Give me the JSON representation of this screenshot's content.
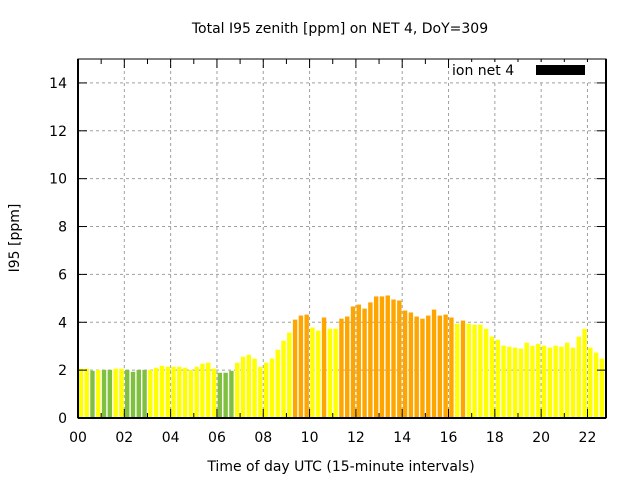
{
  "chart_data": {
    "type": "bar",
    "title": "Total I95 zenith [ppm] on NET 4, DoY=309",
    "xlabel": "Time of day UTC (15-minute intervals)",
    "ylabel": "I95 [ppm]",
    "xlim": [
      0,
      22.8
    ],
    "ylim": [
      0,
      15
    ],
    "grid": true,
    "legend": {
      "label": "ion net 4",
      "color": "#000000",
      "placement": "top-right"
    },
    "x_ticks": [
      {
        "v": 0,
        "label": "00"
      },
      {
        "v": 2,
        "label": "02"
      },
      {
        "v": 4,
        "label": "04"
      },
      {
        "v": 6,
        "label": "06"
      },
      {
        "v": 8,
        "label": "08"
      },
      {
        "v": 10,
        "label": "10"
      },
      {
        "v": 12,
        "label": "12"
      },
      {
        "v": 14,
        "label": "14"
      },
      {
        "v": 16,
        "label": "16"
      },
      {
        "v": 18,
        "label": "18"
      },
      {
        "v": 20,
        "label": "20"
      },
      {
        "v": 22,
        "label": "22"
      }
    ],
    "y_ticks": [
      {
        "v": 0,
        "label": "0"
      },
      {
        "v": 2,
        "label": "2"
      },
      {
        "v": 4,
        "label": "4"
      },
      {
        "v": 6,
        "label": "6"
      },
      {
        "v": 8,
        "label": "8"
      },
      {
        "v": 10,
        "label": "10"
      },
      {
        "v": 12,
        "label": "12"
      },
      {
        "v": 14,
        "label": "14"
      }
    ],
    "interval_hours": 0.25,
    "color_key": {
      "Y": "#ffff00",
      "G": "#80c040",
      "O": "#ffa500"
    },
    "values": [
      2.06,
      2.06,
      1.97,
      2.01,
      2.01,
      2.01,
      2.06,
      2.06,
      2.01,
      1.93,
      2.01,
      2.01,
      2.01,
      2.1,
      2.18,
      2.14,
      2.14,
      2.14,
      2.1,
      2.01,
      2.14,
      2.27,
      2.31,
      2.06,
      1.89,
      1.89,
      1.97,
      2.31,
      2.56,
      2.64,
      2.48,
      2.14,
      2.31,
      2.48,
      2.85,
      3.23,
      3.57,
      4.11,
      4.28,
      4.32,
      3.78,
      3.65,
      4.2,
      3.73,
      3.73,
      4.15,
      4.24,
      4.66,
      4.74,
      4.57,
      4.83,
      5.08,
      5.08,
      5.12,
      4.95,
      4.91,
      4.49,
      4.41,
      4.24,
      4.15,
      4.28,
      4.53,
      4.28,
      4.32,
      4.2,
      3.94,
      4.07,
      3.94,
      3.9,
      3.9,
      3.73,
      3.4,
      3.27,
      3.02,
      2.98,
      2.94,
      2.9,
      3.15,
      3.02,
      3.1,
      3.02,
      2.94,
      3.02,
      2.98,
      3.15,
      2.94,
      3.4,
      3.73,
      2.94,
      2.73,
      2.48,
      2.17
    ],
    "colors": "YYGYGGYYGGGGYYYYYYYYYYYYGGGYYYYYYYYYYOOOYYOYYOOOOOOOOOOOOOOOOOOOOYOYYYYYYYYYYYYYYYYYYYYYYYYYY"
  }
}
